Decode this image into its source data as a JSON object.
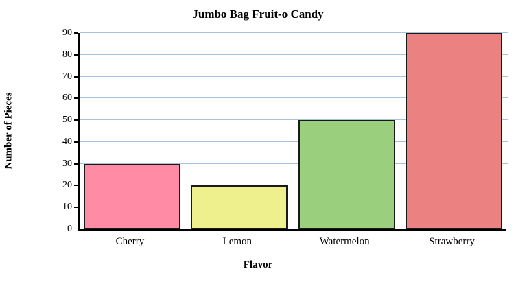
{
  "chart_data": {
    "type": "bar",
    "title": "Jumbo Bag Fruit-o Candy",
    "xlabel": "Flavor",
    "ylabel": "Number of Pieces",
    "categories": [
      "Cherry",
      "Lemon",
      "Watermelon",
      "Strawberry"
    ],
    "values": [
      30,
      20,
      50,
      90
    ],
    "bar_colors": [
      "#FF8CA4",
      "#EEF08E",
      "#9ACF7D",
      "#EB8181"
    ],
    "ylim": [
      0,
      90
    ],
    "yticks": [
      0,
      10,
      20,
      30,
      40,
      50,
      60,
      70,
      80,
      90
    ],
    "grid": "horizontal",
    "gridline_color": "#A6C1DC",
    "bar_border_color": "#1a1a1a",
    "axis_color": "#000000",
    "legend": "none",
    "background_color": "#ffffff"
  }
}
